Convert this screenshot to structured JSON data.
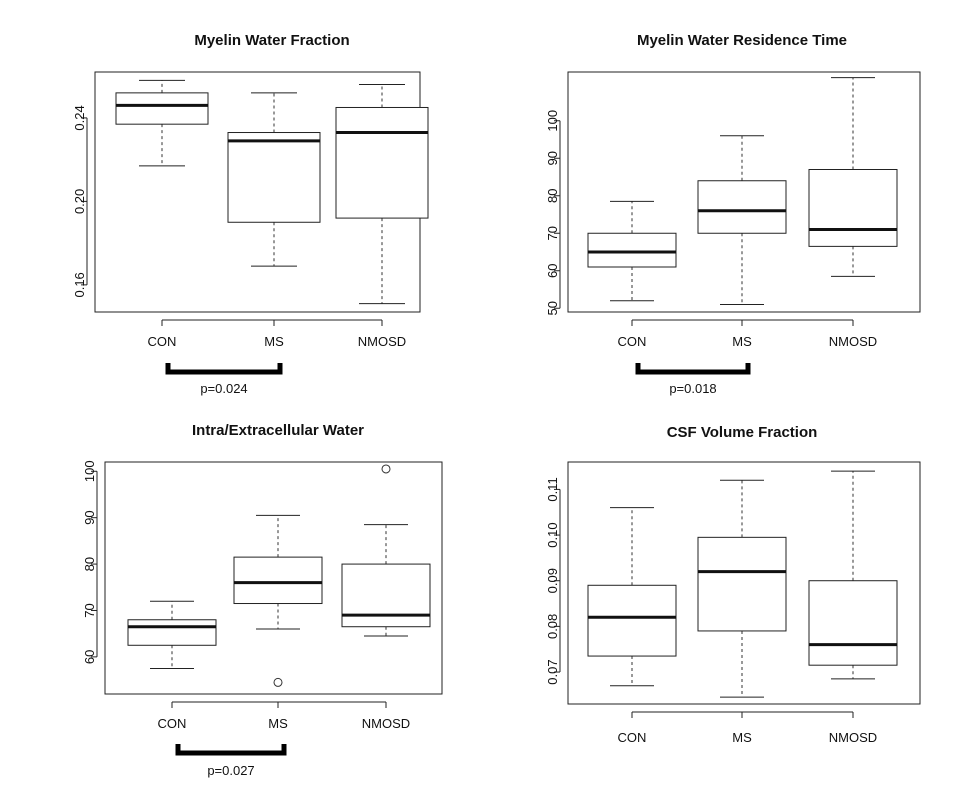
{
  "chart_data": [
    {
      "type": "boxplot",
      "title": "Myelin Water Fraction",
      "categories": [
        "CON",
        "MS",
        "NMOSD"
      ],
      "ylim": [
        0.147,
        0.262
      ],
      "yticks": [
        0.16,
        0.2,
        0.24
      ],
      "ytick_labels": [
        "0.16",
        "0.20",
        "0.24"
      ],
      "boxes": [
        {
          "group": "CON",
          "whisker_low": 0.217,
          "q1": 0.237,
          "median": 0.246,
          "q3": 0.252,
          "whisker_high": 0.258,
          "outliers": []
        },
        {
          "group": "MS",
          "whisker_low": 0.169,
          "q1": 0.19,
          "median": 0.229,
          "q3": 0.233,
          "whisker_high": 0.252,
          "outliers": []
        },
        {
          "group": "NMOSD",
          "whisker_low": 0.151,
          "q1": 0.192,
          "median": 0.233,
          "q3": 0.245,
          "whisker_high": 0.256,
          "outliers": []
        }
      ],
      "significance": {
        "from": "CON",
        "to": "MS",
        "label": "p=0.024"
      }
    },
    {
      "type": "boxplot",
      "title": "Myelin Water Residence Time",
      "categories": [
        "CON",
        "MS",
        "NMOSD"
      ],
      "ylim": [
        49,
        113
      ],
      "yticks": [
        50,
        60,
        70,
        80,
        90,
        100
      ],
      "ytick_labels": [
        "50",
        "60",
        "70",
        "80",
        "90",
        "100"
      ],
      "boxes": [
        {
          "group": "CON",
          "whisker_low": 52,
          "q1": 61,
          "median": 65,
          "q3": 70,
          "whisker_high": 78.5,
          "outliers": []
        },
        {
          "group": "MS",
          "whisker_low": 51,
          "q1": 70,
          "median": 76,
          "q3": 84,
          "whisker_high": 96,
          "outliers": []
        },
        {
          "group": "NMOSD",
          "whisker_low": 58.5,
          "q1": 66.5,
          "median": 71,
          "q3": 87,
          "whisker_high": 111.5,
          "outliers": []
        }
      ],
      "significance": {
        "from": "CON",
        "to": "MS",
        "label": "p=0.018"
      }
    },
    {
      "type": "boxplot",
      "title": "Intra/Extracellular Water",
      "categories": [
        "CON",
        "MS",
        "NMOSD"
      ],
      "ylim": [
        52,
        102
      ],
      "yticks": [
        60,
        70,
        80,
        90,
        100
      ],
      "ytick_labels": [
        "60",
        "70",
        "80",
        "90",
        "100"
      ],
      "boxes": [
        {
          "group": "CON",
          "whisker_low": 57.5,
          "q1": 62.5,
          "median": 66.5,
          "q3": 68,
          "whisker_high": 72,
          "outliers": []
        },
        {
          "group": "MS",
          "whisker_low": 66,
          "q1": 71.5,
          "median": 76,
          "q3": 81.5,
          "whisker_high": 90.5,
          "outliers": [
            54.5
          ]
        },
        {
          "group": "NMOSD",
          "whisker_low": 64.5,
          "q1": 66.5,
          "median": 69,
          "q3": 80,
          "whisker_high": 88.5,
          "outliers": [
            100.5
          ]
        }
      ],
      "significance": {
        "from": "CON",
        "to": "MS",
        "label": "p=0.027"
      }
    },
    {
      "type": "boxplot",
      "title": "CSF Volume Fraction",
      "categories": [
        "CON",
        "MS",
        "NMOSD"
      ],
      "ylim": [
        0.063,
        0.116
      ],
      "yticks": [
        0.07,
        0.08,
        0.09,
        0.1,
        0.11
      ],
      "ytick_labels": [
        "0.07",
        "0.08",
        "0.09",
        "0.10",
        "0.11"
      ],
      "boxes": [
        {
          "group": "CON",
          "whisker_low": 0.067,
          "q1": 0.0735,
          "median": 0.082,
          "q3": 0.089,
          "whisker_high": 0.106,
          "outliers": []
        },
        {
          "group": "MS",
          "whisker_low": 0.0645,
          "q1": 0.079,
          "median": 0.092,
          "q3": 0.0995,
          "whisker_high": 0.112,
          "outliers": []
        },
        {
          "group": "NMOSD",
          "whisker_low": 0.0685,
          "q1": 0.0715,
          "median": 0.076,
          "q3": 0.09,
          "whisker_high": 0.114,
          "outliers": []
        }
      ],
      "significance": null
    }
  ]
}
